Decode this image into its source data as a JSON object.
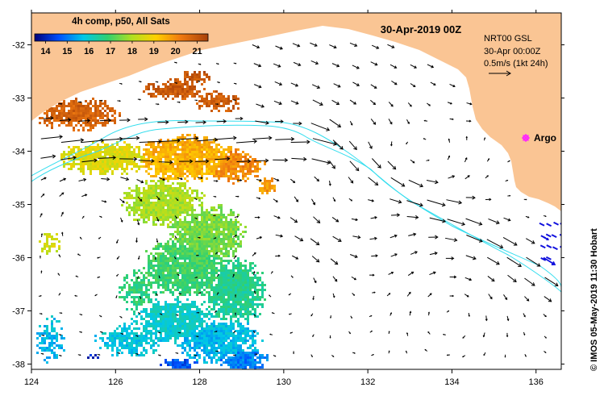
{
  "map": {
    "title": "30-Apr-2019 00Z",
    "colorbar": {
      "title": "4h comp, p50, All Sats",
      "ticks": [
        "14",
        "15",
        "16",
        "17",
        "18",
        "19",
        "20",
        "21"
      ],
      "range_c": [
        13.5,
        21.5
      ]
    },
    "legend": {
      "product": "NRT00 GSL",
      "datetime": "30-Apr 00:00Z",
      "scale": "0.5m/s (1kt 24h)"
    },
    "argo_label": "Argo",
    "credit": "© IMOS 05-May-2019 11:30 Hobart",
    "lon_ticks": [
      "124",
      "126",
      "128",
      "130",
      "132",
      "134",
      "136"
    ],
    "lat_ticks": [
      "-32",
      "-33",
      "-34",
      "-35",
      "-36",
      "-37",
      "-38"
    ],
    "lon_range": [
      124,
      136.6
    ],
    "lat_range": [
      -38.1,
      -31.4
    ],
    "colors": {
      "land": "#fac594",
      "contour": "#33ddee",
      "argo": "#ff22ff",
      "arrow": "#000000",
      "background": "#ffffff"
    }
  }
}
